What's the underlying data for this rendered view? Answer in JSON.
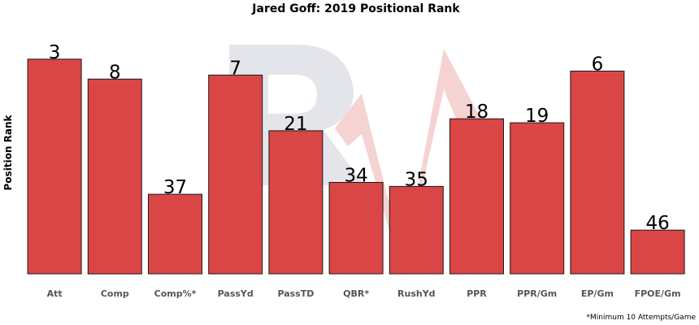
{
  "chart_data": {
    "type": "bar",
    "title": "Jared Goff: 2019 Positional Rank",
    "xlabel": "",
    "ylabel": "Position Rank",
    "categories": [
      "Att",
      "Comp",
      "Comp%*",
      "PassYd",
      "PassTD",
      "QBR*",
      "RushYd",
      "PPR",
      "PPR/Gm",
      "EP/Gm",
      "FPOE/Gm"
    ],
    "values": [
      3,
      8,
      37,
      7,
      21,
      34,
      35,
      18,
      19,
      6,
      46
    ],
    "scale": "rank",
    "ylim": [
      1,
      57
    ],
    "grid": false,
    "legend": "none",
    "bar_color": "#d94040",
    "bar_edge_color": "#1a1a1a",
    "watermark_color": "#e3e5ea",
    "watermark_accent_color": "#f6d3d3"
  },
  "footnote": "*Minimum 10 Attempts/Game"
}
